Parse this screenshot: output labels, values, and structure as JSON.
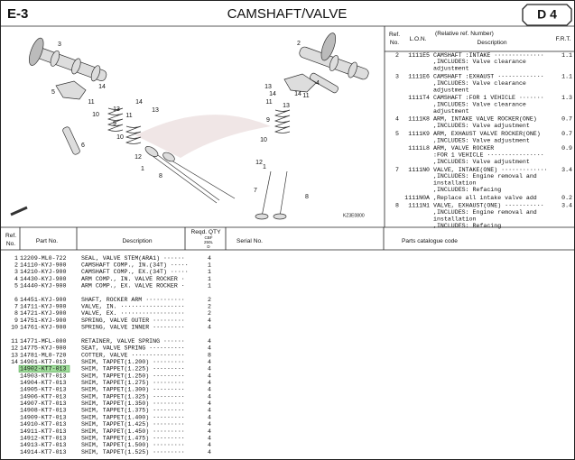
{
  "header": {
    "section": "E-3",
    "title": "CAMSHAFT/VALVE",
    "page": "D 4"
  },
  "diagram": {
    "callouts": [
      "3",
      "5",
      "14",
      "11",
      "10",
      "14",
      "13",
      "11",
      "13",
      "9",
      "10",
      "12",
      "1",
      "8",
      "6",
      "2",
      "4",
      "13",
      "14",
      "11",
      "13",
      "14",
      "11",
      "9",
      "10",
      "12",
      "1",
      "7",
      "8"
    ],
    "code": "KZ3E0800"
  },
  "reference_table": {
    "columns": {
      "ref": [
        "Ref.",
        "No."
      ],
      "lon": "L.O.N.",
      "relative": "(Relative ref. Number)",
      "description": "Description",
      "frt": "F.R.T."
    },
    "rows": [
      {
        "ref": "2",
        "lon": "1111E5",
        "lines": [
          "CAMSHAFT :INTAKE ··············",
          ",INCLUDES: Valve clearance",
          "adjustment"
        ],
        "frt": 1.1
      },
      {
        "ref": "3",
        "lon": "1111E6",
        "lines": [
          "CAMSHAFT :EXHAUST ·············",
          ",INCLUDES: Valve clearance",
          "adjustment"
        ],
        "frt": 1.1
      },
      {
        "lon": "1111T4",
        "lines": [
          "CAMSHAFT :FOR 1 VEHICLE ·······",
          ",INCLUDES: Valve clearance",
          "adjustment"
        ],
        "frt": 1.3
      },
      {
        "ref": "4",
        "lon": "1111K8",
        "lines": [
          "ARM, INTAKE VALVE ROCKER(ONE)",
          ",INCLUDES: Valve adjustment"
        ],
        "frt": 0.7
      },
      {
        "ref": "5",
        "lon": "1111K9",
        "lines": [
          "ARM, EXHAUST VALVE ROCKER(ONE)",
          ",INCLUDES: Valve adjustment"
        ],
        "frt": 0.7
      },
      {
        "lon": "1111L8",
        "lines": [
          "ARM, VALVE ROCKER",
          ":FOR 1 VEHICLE ················",
          ",INCLUDES: Valve adjustment"
        ],
        "frt": 0.9
      },
      {
        "ref": "7",
        "lon": "1111N0",
        "lines": [
          "VALVE, INTAKE(ONE) ·············",
          ",INCLUDES: Engine removal and",
          "installation",
          ",INCLUDES: Refacing"
        ],
        "frt": 3.4
      },
      {
        "lon": "1111N0A",
        "lines": [
          ",Replace all intake valve add"
        ],
        "frt": 0.2
      },
      {
        "ref": "8",
        "lon": "1111N1",
        "lines": [
          "VALVE, EXHAUST(ONE) ···········",
          ",INCLUDES: Engine removal and",
          "installation",
          ",INCLUDES: Refacing"
        ],
        "frt": 3.4
      }
    ]
  },
  "parts_table": {
    "columns": {
      "ref": [
        "Ref.",
        "No."
      ],
      "part": "Part No.",
      "description": "Description",
      "qty": "Reqd. QTY",
      "model": [
        "CBF",
        "250L",
        "D"
      ],
      "serial": "Serial No.",
      "code": "Parts catalogue code"
    },
    "groups": [
      [
        {
          "ref": "1",
          "part": "12209-ML0-722",
          "description": "SEAL, VALVE STEM(ARA1) ······",
          "qty": 4
        },
        {
          "ref": "2",
          "part": "14110-KYJ-900",
          "description": "CAMSHAFT COMP., IN.(34T) ·····",
          "qty": 1
        },
        {
          "ref": "3",
          "part": "14210-KYJ-900",
          "description": "CAMSHAFT COMP., EX.(34T) ·····",
          "qty": 1
        },
        {
          "ref": "4",
          "part": "14430-KYJ-900",
          "description": "ARM COMP., IN. VALVE ROCKER ·",
          "qty": 1
        },
        {
          "ref": "5",
          "part": "14440-KYJ-900",
          "description": "ARM COMP., EX. VALVE ROCKER ·",
          "qty": 1
        }
      ],
      [
        {
          "ref": "6",
          "part": "14451-KYJ-900",
          "description": "SHAFT, ROCKER ARM ···········",
          "qty": 2
        },
        {
          "ref": "7",
          "part": "14711-KYJ-900",
          "description": "VALVE, IN. ··················",
          "qty": 2
        },
        {
          "ref": "8",
          "part": "14721-KYJ-900",
          "description": "VALVE, EX. ··················",
          "qty": 2
        },
        {
          "ref": "9",
          "part": "14751-KYJ-900",
          "description": "SPRING, VALVE OUTER ·········",
          "qty": 4
        },
        {
          "ref": "10",
          "part": "14761-KYJ-900",
          "description": "SPRING, VALVE INNER ·········",
          "qty": 4
        }
      ],
      [
        {
          "ref": "11",
          "part": "14771-MFL-000",
          "description": "RETAINER, VALVE SPRING ······",
          "qty": 4
        },
        {
          "ref": "12",
          "part": "14775-KYJ-900",
          "description": "SEAT, VALVE SPRING ··········",
          "qty": 4
        },
        {
          "ref": "13",
          "part": "14781-ML0-720",
          "description": "COTTER, VALVE ···············",
          "qty": 8
        },
        {
          "ref": "14",
          "part": "14901-KT7-013",
          "description": "SHIM, TAPPET(1.200) ·········",
          "qty": 4
        },
        {
          "part": "14902-KT7-013",
          "description": "SHIM, TAPPET(1.225) ·········",
          "qty": 4,
          "highlighted": true
        },
        {
          "part": "14903-KT7-013",
          "description": "SHIM, TAPPET(1.250) ·········",
          "qty": 4
        },
        {
          "part": "14904-KT7-013",
          "description": "SHIM, TAPPET(1.275) ·········",
          "qty": 4
        },
        {
          "part": "14905-KT7-013",
          "description": "SHIM, TAPPET(1.300) ·········",
          "qty": 4
        },
        {
          "part": "14906-KT7-013",
          "description": "SHIM, TAPPET(1.325) ·········",
          "qty": 4
        },
        {
          "part": "14907-KT7-013",
          "description": "SHIM, TAPPET(1.350) ·········",
          "qty": 4
        },
        {
          "part": "14908-KT7-013",
          "description": "SHIM, TAPPET(1.375) ·········",
          "qty": 4
        },
        {
          "part": "14909-KT7-013",
          "description": "SHIM, TAPPET(1.400) ·········",
          "qty": 4
        },
        {
          "part": "14910-KT7-013",
          "description": "SHIM, TAPPET(1.425) ·········",
          "qty": 4
        },
        {
          "part": "14911-KT7-013",
          "description": "SHIM, TAPPET(1.450) ·········",
          "qty": 4
        },
        {
          "part": "14912-KT7-013",
          "description": "SHIM, TAPPET(1.475) ·········",
          "qty": 4
        },
        {
          "part": "14913-KT7-013",
          "description": "SHIM, TAPPET(1.500) ·········",
          "qty": 4
        },
        {
          "part": "14914-KT7-013",
          "description": "SHIM, TAPPET(1.525) ·········",
          "qty": 4
        }
      ]
    ]
  }
}
